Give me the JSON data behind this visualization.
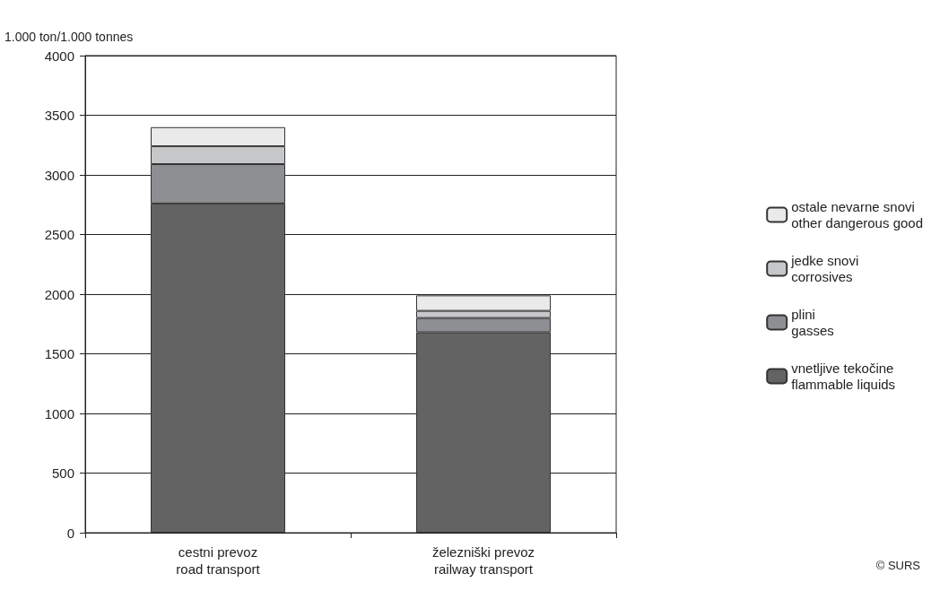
{
  "chart_data": {
    "type": "bar",
    "stacked": true,
    "ylabel": "1.000 ton/1.000 tonnes",
    "categories": [
      "cestni prevoz\nroad transport",
      "železniški prevoz\nrailway transport"
    ],
    "series": [
      {
        "name": "vnetljive tekočine\nflammable liquids",
        "color": "#636363",
        "values": [
          2760,
          1680
        ]
      },
      {
        "name": "plini\ngasses",
        "color": "#8e8f93",
        "values": [
          330,
          120
        ]
      },
      {
        "name": "jedke snovi\ncorrosives",
        "color": "#c6c7c9",
        "values": [
          150,
          60
        ]
      },
      {
        "name": "ostale nevarne snovi\nother dangerous good",
        "color": "#e9eae9",
        "values": [
          160,
          130
        ]
      }
    ],
    "ylim": [
      0,
      4000
    ],
    "yticks": [
      0,
      500,
      1000,
      1500,
      2000,
      2500,
      3000,
      3500,
      4000
    ],
    "grid": "y",
    "legend": "right",
    "annotations": [
      "© SURS"
    ]
  }
}
